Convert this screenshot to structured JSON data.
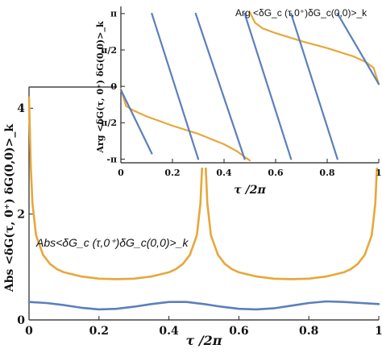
{
  "colors": {
    "blue": "#5b7fbd",
    "orange": "#e8a73a",
    "axis": "#222222"
  },
  "chart_data": [
    {
      "type": "line",
      "panel": "main",
      "xlabel": "τ /2π",
      "ylabel": "Abs <δG(τ, 0⁺) δG(0,0)>_k",
      "annotation": "Abs<δG_c (τ,0⁺)δG_c(0,0)>_k",
      "xlim": [
        0,
        1
      ],
      "ylim": [
        0,
        4.4
      ],
      "xticks": [
        0,
        0.2,
        0.4,
        0.6,
        0.8,
        1
      ],
      "xtick_labels": [
        "0",
        "0.2",
        "0.4",
        "0.6",
        "0.8",
        "1"
      ],
      "yticks": [
        0,
        2,
        4
      ],
      "ytick_labels": [
        "0",
        "2",
        "4"
      ],
      "series": [
        {
          "color": "#e8a73a",
          "x": [
            0.0,
            0.005,
            0.01,
            0.02,
            0.04,
            0.06,
            0.08,
            0.1,
            0.15,
            0.2,
            0.25,
            0.3,
            0.35,
            0.4,
            0.42,
            0.44,
            0.46,
            0.48,
            0.49,
            0.495,
            0.5,
            0.505,
            0.51,
            0.52,
            0.54,
            0.56,
            0.58,
            0.6,
            0.65,
            0.7,
            0.75,
            0.8,
            0.85,
            0.9,
            0.92,
            0.94,
            0.96,
            0.98,
            0.99,
            0.995,
            1.0
          ],
          "values": [
            4.2,
            2.9,
            2.2,
            1.6,
            1.23,
            1.06,
            0.96,
            0.9,
            0.82,
            0.78,
            0.77,
            0.78,
            0.82,
            0.9,
            0.96,
            1.06,
            1.23,
            1.6,
            2.2,
            2.9,
            3.2,
            2.9,
            2.2,
            1.6,
            1.23,
            1.06,
            0.96,
            0.9,
            0.82,
            0.78,
            0.77,
            0.78,
            0.82,
            0.9,
            0.96,
            1.06,
            1.23,
            1.6,
            2.2,
            2.9,
            4.2
          ]
        },
        {
          "color": "#5b7fbd",
          "x": [
            0,
            0.05,
            0.1,
            0.15,
            0.2,
            0.25,
            0.3,
            0.35,
            0.4,
            0.45,
            0.5,
            0.55,
            0.6,
            0.65,
            0.7,
            0.75,
            0.8,
            0.85,
            0.9,
            0.95,
            1.0
          ],
          "values": [
            0.34,
            0.32,
            0.28,
            0.23,
            0.2,
            0.21,
            0.25,
            0.3,
            0.34,
            0.34,
            0.3,
            0.25,
            0.21,
            0.2,
            0.22,
            0.27,
            0.32,
            0.35,
            0.34,
            0.32,
            0.3
          ]
        }
      ]
    },
    {
      "type": "line",
      "panel": "inset",
      "xlabel": "τ /2π",
      "ylabel": "Arg <δG(τ, 0⁺) δG(0,0)>_k",
      "annotation": "Arg <δG_c (τ,0⁺)δG_c(0,0)>_k",
      "xlim": [
        0,
        1
      ],
      "ylim": [
        -3.3,
        3.45
      ],
      "xticks": [
        0,
        0.2,
        0.4,
        0.6,
        0.8,
        1
      ],
      "xtick_labels": [
        "0",
        "0.2",
        "0.4",
        "0.6",
        "0.8",
        "1"
      ],
      "yticks": [
        -3.14159,
        -1.5708,
        0,
        1.5708,
        3.14159
      ],
      "ytick_labels": [
        "-π",
        "-π/2",
        "0",
        "π/2",
        "π"
      ],
      "series": [
        {
          "color": "#e8a73a",
          "segments": [
            {
              "x": [
                0.0,
                0.02,
                0.05,
                0.1,
                0.2,
                0.3,
                0.4,
                0.45,
                0.48,
                0.5
              ],
              "values": [
                -0.1,
                -0.85,
                -1.05,
                -1.3,
                -1.7,
                -2.05,
                -2.5,
                -2.8,
                -3.05,
                -3.2
              ]
            },
            {
              "x": [
                0.5,
                0.52,
                0.55,
                0.6,
                0.7,
                0.8,
                0.9,
                0.95,
                0.98,
                1.0
              ],
              "values": [
                3.2,
                2.75,
                2.5,
                2.3,
                1.95,
                1.65,
                1.3,
                1.05,
                0.8,
                0.1
              ]
            }
          ]
        },
        {
          "color": "#5b7fbd",
          "segments": [
            {
              "x": [
                0.0,
                0.12
              ],
              "values": [
                -0.15,
                -2.9
              ]
            },
            {
              "x": [
                0.12,
                0.3
              ],
              "values": [
                3.14,
                -3.14
              ]
            },
            {
              "x": [
                0.29,
                0.48
              ],
              "values": [
                3.14,
                -3.14
              ]
            },
            {
              "x": [
                0.48,
                0.66
              ],
              "values": [
                3.14,
                -3.14
              ]
            },
            {
              "x": [
                0.66,
                0.84
              ],
              "values": [
                3.14,
                -3.14
              ]
            },
            {
              "x": [
                0.84,
                1.0
              ],
              "values": [
                3.14,
                0.1
              ]
            }
          ]
        }
      ]
    }
  ]
}
